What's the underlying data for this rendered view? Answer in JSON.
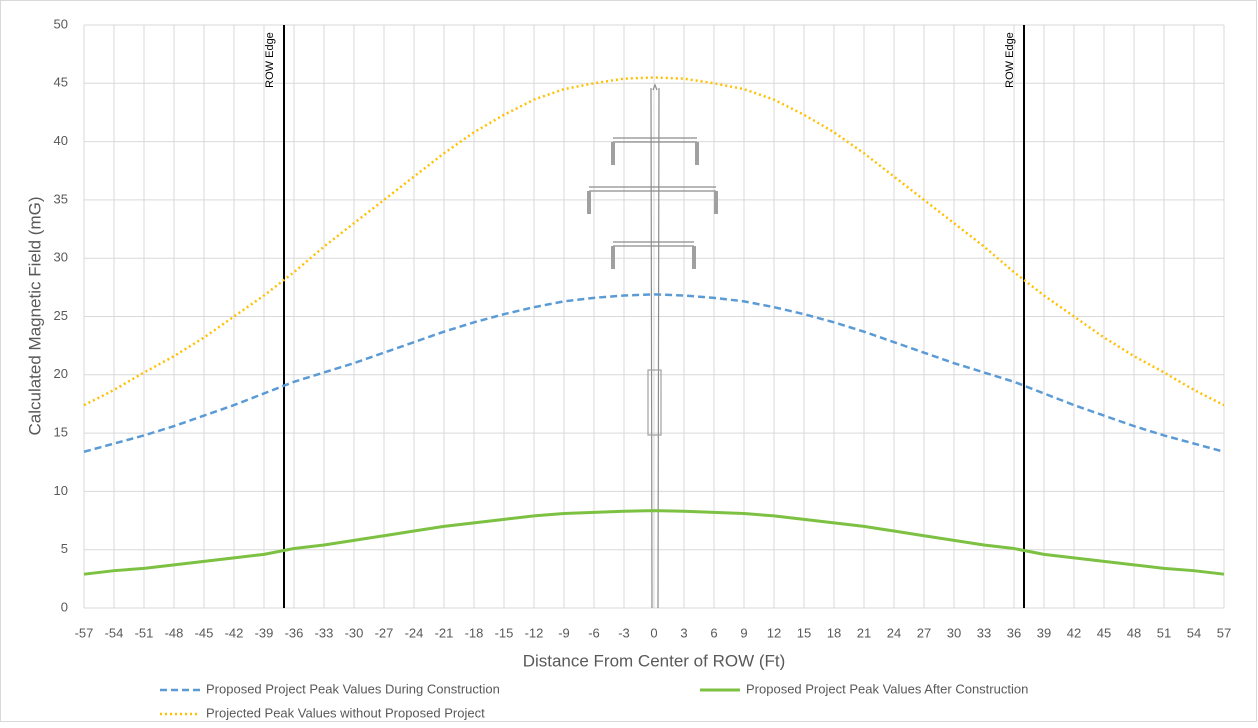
{
  "chart_data": {
    "type": "line",
    "y_label": "Calculated Magnetic Field (mG)",
    "x_label": "Distance From Center of ROW (Ft)",
    "x": [
      -57,
      -54,
      -51,
      -48,
      -45,
      -42,
      -39,
      -36,
      -33,
      -30,
      -27,
      -24,
      -21,
      -18,
      -15,
      -12,
      -9,
      -6,
      -3,
      0,
      3,
      6,
      9,
      12,
      15,
      18,
      21,
      24,
      27,
      30,
      33,
      36,
      39,
      42,
      45,
      48,
      51,
      54,
      57
    ],
    "xlim": [
      -57,
      57
    ],
    "xticks": [
      -57,
      -54,
      -51,
      -48,
      -45,
      -42,
      -39,
      -36,
      -33,
      -30,
      -27,
      -24,
      -21,
      -18,
      -15,
      -12,
      -9,
      -6,
      -3,
      0,
      3,
      6,
      9,
      12,
      15,
      18,
      21,
      24,
      27,
      30,
      33,
      36,
      39,
      42,
      45,
      48,
      51,
      54,
      57
    ],
    "ylim": [
      0,
      50
    ],
    "yticks": [
      0,
      5,
      10,
      15,
      20,
      25,
      30,
      35,
      40,
      45,
      50
    ],
    "grid": true,
    "vlines": [
      {
        "x": -37,
        "label": "ROW Edge"
      },
      {
        "x": 37,
        "label": "ROW Edge"
      }
    ],
    "series": [
      {
        "name": "Proposed Project Peak Values During Construction",
        "color": "#5b9bd5",
        "dash": "dashed",
        "values": [
          13.4,
          14.1,
          14.8,
          15.6,
          16.5,
          17.4,
          18.4,
          19.4,
          20.2,
          21.0,
          21.9,
          22.8,
          23.7,
          24.5,
          25.2,
          25.8,
          26.3,
          26.6,
          26.8,
          26.9,
          26.8,
          26.6,
          26.3,
          25.8,
          25.2,
          24.5,
          23.7,
          22.8,
          21.9,
          21.0,
          20.2,
          19.4,
          18.4,
          17.4,
          16.5,
          15.6,
          14.8,
          14.1,
          13.4
        ]
      },
      {
        "name": "Proposed Project Peak Values After Construction",
        "color": "#7dc142",
        "dash": "solid",
        "values": [
          2.9,
          3.2,
          3.4,
          3.7,
          4.0,
          4.3,
          4.6,
          5.1,
          5.4,
          5.8,
          6.2,
          6.6,
          7.0,
          7.3,
          7.6,
          7.9,
          8.1,
          8.2,
          8.3,
          8.35,
          8.3,
          8.2,
          8.1,
          7.9,
          7.6,
          7.3,
          7.0,
          6.6,
          6.2,
          5.8,
          5.4,
          5.1,
          4.6,
          4.3,
          4.0,
          3.7,
          3.4,
          3.2,
          2.9
        ]
      },
      {
        "name": "Projected Peak Values without Proposed Project",
        "color": "#ffc000",
        "dash": "dotted",
        "values": [
          17.4,
          18.7,
          20.2,
          21.6,
          23.2,
          25.0,
          26.8,
          28.8,
          31.0,
          33.0,
          35.0,
          37.0,
          39.0,
          40.8,
          42.3,
          43.6,
          44.5,
          45.0,
          45.4,
          45.5,
          45.4,
          45.0,
          44.5,
          43.6,
          42.3,
          40.8,
          39.0,
          37.0,
          35.0,
          33.0,
          31.0,
          28.8,
          26.8,
          25.0,
          23.2,
          21.6,
          20.2,
          18.7,
          17.4
        ]
      }
    ]
  }
}
